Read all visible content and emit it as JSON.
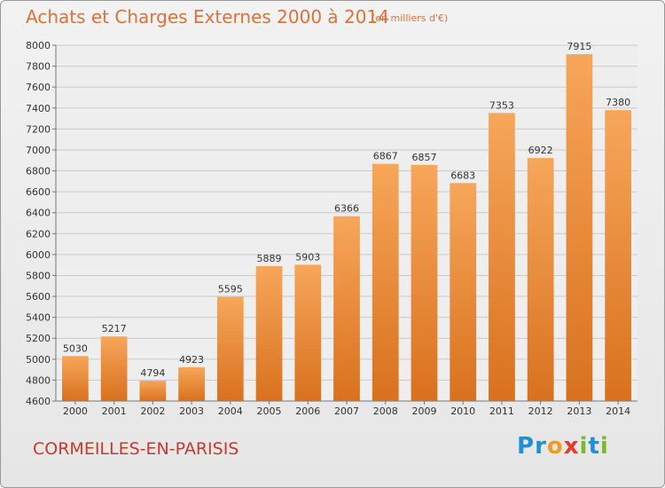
{
  "title": "Achats et Charges Externes 2000 à 2014",
  "subtitle": "(en milliers d'€)",
  "place": "CORMEILLES-EN-PARISIS",
  "logo": {
    "text": "Proxiti",
    "letters": [
      {
        "ch": "P",
        "color": "#1f8fd6"
      },
      {
        "ch": "r",
        "color": "#1f8fd6"
      },
      {
        "ch": "o",
        "color": "#f29a1a"
      },
      {
        "ch": "x",
        "color": "#e53c2a"
      },
      {
        "ch": "i",
        "color": "#7cb82f"
      },
      {
        "ch": "t",
        "color": "#1f8fd6"
      },
      {
        "ch": "i",
        "color": "#7cb82f"
      }
    ]
  },
  "colors": {
    "accent": "#e0703a",
    "bar_top": "#f7a65a",
    "bar_bottom": "#d8711e",
    "place": "#c73a2c"
  },
  "chart_data": {
    "type": "bar",
    "categories": [
      "2000",
      "2001",
      "2002",
      "2003",
      "2004",
      "2005",
      "2006",
      "2007",
      "2008",
      "2009",
      "2010",
      "2011",
      "2012",
      "2013",
      "2014"
    ],
    "values": [
      5030,
      5217,
      4794,
      4923,
      5595,
      5889,
      5903,
      6366,
      6867,
      6857,
      6683,
      7353,
      6922,
      7915,
      7380
    ],
    "ylim": [
      4600,
      8000
    ],
    "yticks": [
      4600,
      4800,
      5000,
      5200,
      5400,
      5600,
      5800,
      6000,
      6200,
      6400,
      6600,
      6800,
      7000,
      7200,
      7400,
      7600,
      7800,
      8000
    ],
    "grid": true,
    "data_labels": true
  }
}
